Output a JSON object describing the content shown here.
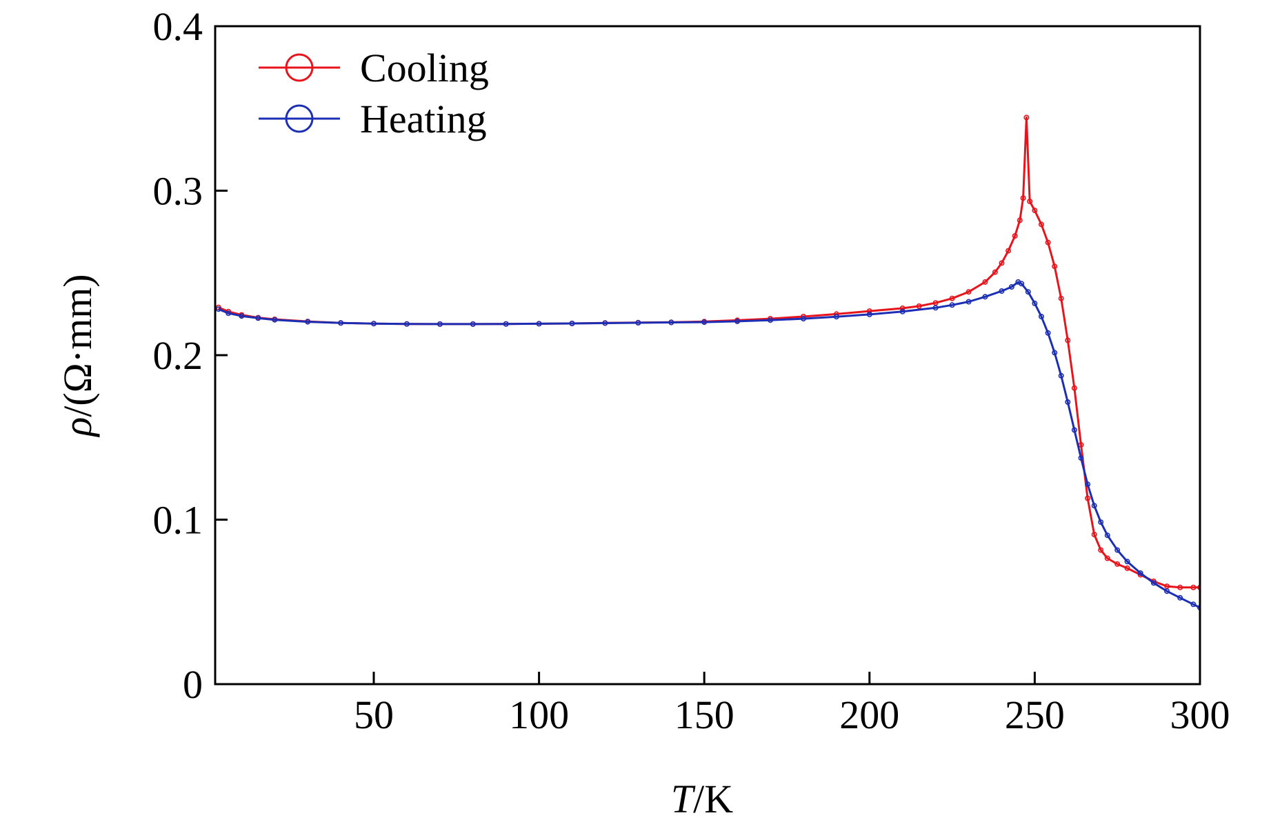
{
  "chart_data": {
    "type": "line",
    "title": "",
    "xlabel": {
      "symbol": "T",
      "unit": "/K"
    },
    "ylabel": {
      "symbol": "ρ",
      "unit": "/(Ω·mm)"
    },
    "xlim": [
      2,
      300
    ],
    "ylim": [
      0,
      0.4
    ],
    "xticks": [
      50,
      100,
      150,
      200,
      250,
      300
    ],
    "xtick_labels": [
      "50",
      "100",
      "150",
      "200",
      "250",
      "300"
    ],
    "yticks": [
      0,
      0.1,
      0.2,
      0.3,
      0.4
    ],
    "ytick_labels": [
      "0",
      "0.1",
      "0.2",
      "0.3",
      "0.4"
    ],
    "grid": false,
    "legend_position": "top-left",
    "series": [
      {
        "name": "Cooling",
        "color": "#e8141c",
        "marker": "open-circle",
        "points": [
          [
            3,
            0.229
          ],
          [
            6,
            0.2265
          ],
          [
            10,
            0.2245
          ],
          [
            15,
            0.2228
          ],
          [
            20,
            0.2218
          ],
          [
            30,
            0.2205
          ],
          [
            40,
            0.2196
          ],
          [
            50,
            0.2192
          ],
          [
            60,
            0.219
          ],
          [
            70,
            0.2189
          ],
          [
            80,
            0.2189
          ],
          [
            90,
            0.219
          ],
          [
            100,
            0.2191
          ],
          [
            110,
            0.2193
          ],
          [
            120,
            0.2196
          ],
          [
            130,
            0.2198
          ],
          [
            140,
            0.22
          ],
          [
            150,
            0.2204
          ],
          [
            160,
            0.2212
          ],
          [
            170,
            0.2222
          ],
          [
            180,
            0.2235
          ],
          [
            190,
            0.225
          ],
          [
            200,
            0.2268
          ],
          [
            210,
            0.2285
          ],
          [
            215,
            0.2298
          ],
          [
            220,
            0.2318
          ],
          [
            225,
            0.2345
          ],
          [
            230,
            0.2385
          ],
          [
            235,
            0.2445
          ],
          [
            238,
            0.2505
          ],
          [
            240,
            0.256
          ],
          [
            242,
            0.2635
          ],
          [
            244,
            0.2725
          ],
          [
            245.5,
            0.282
          ],
          [
            246.5,
            0.2955
          ],
          [
            247.5,
            0.3445
          ],
          [
            248.5,
            0.2935
          ],
          [
            250,
            0.288
          ],
          [
            252,
            0.2795
          ],
          [
            254,
            0.2685
          ],
          [
            256,
            0.254
          ],
          [
            258,
            0.2345
          ],
          [
            260,
            0.209
          ],
          [
            262,
            0.18
          ],
          [
            264,
            0.1455
          ],
          [
            266,
            0.113
          ],
          [
            268,
            0.091
          ],
          [
            270,
            0.0815
          ],
          [
            272,
            0.0765
          ],
          [
            275,
            0.073
          ],
          [
            278,
            0.0705
          ],
          [
            282,
            0.0665
          ],
          [
            286,
            0.0625
          ],
          [
            290,
            0.0595
          ],
          [
            294,
            0.0588
          ],
          [
            298,
            0.0588
          ],
          [
            300,
            0.0588
          ]
        ]
      },
      {
        "name": "Heating",
        "color": "#1c2fb4",
        "marker": "open-circle",
        "points": [
          [
            3,
            0.228
          ],
          [
            6,
            0.2255
          ],
          [
            10,
            0.2238
          ],
          [
            15,
            0.2225
          ],
          [
            20,
            0.2215
          ],
          [
            30,
            0.2203
          ],
          [
            40,
            0.2196
          ],
          [
            50,
            0.2192
          ],
          [
            60,
            0.219
          ],
          [
            70,
            0.2189
          ],
          [
            80,
            0.2189
          ],
          [
            90,
            0.219
          ],
          [
            100,
            0.2191
          ],
          [
            110,
            0.2193
          ],
          [
            120,
            0.2195
          ],
          [
            130,
            0.2197
          ],
          [
            140,
            0.2199
          ],
          [
            150,
            0.2201
          ],
          [
            160,
            0.2206
          ],
          [
            170,
            0.2213
          ],
          [
            180,
            0.2222
          ],
          [
            190,
            0.2234
          ],
          [
            200,
            0.2248
          ],
          [
            210,
            0.2265
          ],
          [
            220,
            0.2288
          ],
          [
            225,
            0.2305
          ],
          [
            230,
            0.2325
          ],
          [
            235,
            0.2355
          ],
          [
            240,
            0.239
          ],
          [
            243,
            0.2415
          ],
          [
            245,
            0.2445
          ],
          [
            246,
            0.2435
          ],
          [
            248,
            0.2385
          ],
          [
            250,
            0.2315
          ],
          [
            252,
            0.2235
          ],
          [
            254,
            0.2135
          ],
          [
            256,
            0.2015
          ],
          [
            258,
            0.1875
          ],
          [
            260,
            0.1715
          ],
          [
            262,
            0.1545
          ],
          [
            264,
            0.1375
          ],
          [
            266,
            0.1215
          ],
          [
            268,
            0.1085
          ],
          [
            270,
            0.0985
          ],
          [
            272,
            0.0905
          ],
          [
            275,
            0.0815
          ],
          [
            278,
            0.0745
          ],
          [
            282,
            0.0675
          ],
          [
            286,
            0.0615
          ],
          [
            290,
            0.0565
          ],
          [
            294,
            0.0525
          ],
          [
            298,
            0.0485
          ],
          [
            300,
            0.0465
          ]
        ]
      }
    ]
  }
}
